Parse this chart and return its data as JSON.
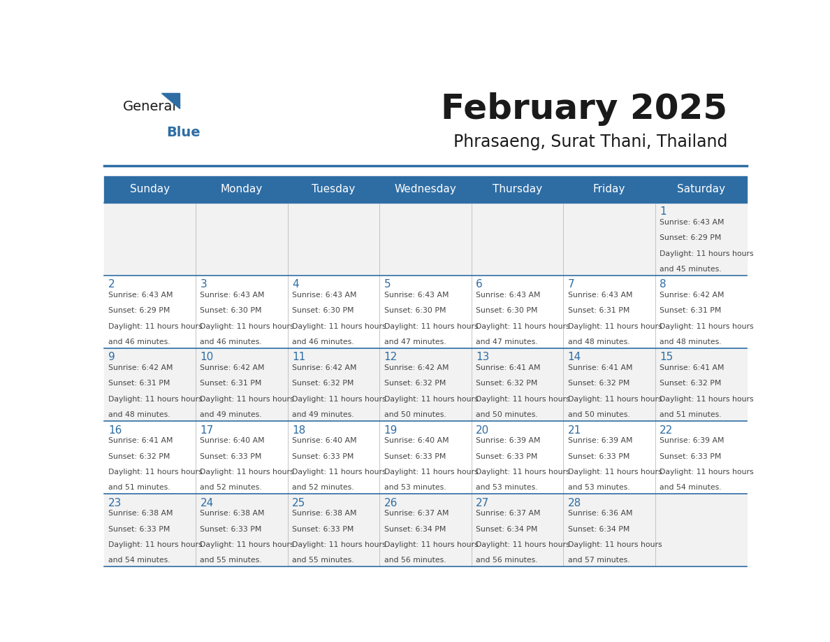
{
  "title": "February 2025",
  "subtitle": "Phrasaeng, Surat Thani, Thailand",
  "header_bg": "#2E6DA4",
  "header_text_color": "#FFFFFF",
  "cell_bg_light": "#F2F2F2",
  "cell_bg_white": "#FFFFFF",
  "day_number_color": "#2E6DA4",
  "text_color": "#444444",
  "line_color": "#2E6DA4",
  "days_of_week": [
    "Sunday",
    "Monday",
    "Tuesday",
    "Wednesday",
    "Thursday",
    "Friday",
    "Saturday"
  ],
  "weeks": [
    [
      {
        "day": "",
        "sunrise": "",
        "sunset": "",
        "daylight": ""
      },
      {
        "day": "",
        "sunrise": "",
        "sunset": "",
        "daylight": ""
      },
      {
        "day": "",
        "sunrise": "",
        "sunset": "",
        "daylight": ""
      },
      {
        "day": "",
        "sunrise": "",
        "sunset": "",
        "daylight": ""
      },
      {
        "day": "",
        "sunrise": "",
        "sunset": "",
        "daylight": ""
      },
      {
        "day": "",
        "sunrise": "",
        "sunset": "",
        "daylight": ""
      },
      {
        "day": "1",
        "sunrise": "6:43 AM",
        "sunset": "6:29 PM",
        "daylight": "11 hours and 45 minutes."
      }
    ],
    [
      {
        "day": "2",
        "sunrise": "6:43 AM",
        "sunset": "6:29 PM",
        "daylight": "11 hours and 46 minutes."
      },
      {
        "day": "3",
        "sunrise": "6:43 AM",
        "sunset": "6:30 PM",
        "daylight": "11 hours and 46 minutes."
      },
      {
        "day": "4",
        "sunrise": "6:43 AM",
        "sunset": "6:30 PM",
        "daylight": "11 hours and 46 minutes."
      },
      {
        "day": "5",
        "sunrise": "6:43 AM",
        "sunset": "6:30 PM",
        "daylight": "11 hours and 47 minutes."
      },
      {
        "day": "6",
        "sunrise": "6:43 AM",
        "sunset": "6:30 PM",
        "daylight": "11 hours and 47 minutes."
      },
      {
        "day": "7",
        "sunrise": "6:43 AM",
        "sunset": "6:31 PM",
        "daylight": "11 hours and 48 minutes."
      },
      {
        "day": "8",
        "sunrise": "6:42 AM",
        "sunset": "6:31 PM",
        "daylight": "11 hours and 48 minutes."
      }
    ],
    [
      {
        "day": "9",
        "sunrise": "6:42 AM",
        "sunset": "6:31 PM",
        "daylight": "11 hours and 48 minutes."
      },
      {
        "day": "10",
        "sunrise": "6:42 AM",
        "sunset": "6:31 PM",
        "daylight": "11 hours and 49 minutes."
      },
      {
        "day": "11",
        "sunrise": "6:42 AM",
        "sunset": "6:32 PM",
        "daylight": "11 hours and 49 minutes."
      },
      {
        "day": "12",
        "sunrise": "6:42 AM",
        "sunset": "6:32 PM",
        "daylight": "11 hours and 50 minutes."
      },
      {
        "day": "13",
        "sunrise": "6:41 AM",
        "sunset": "6:32 PM",
        "daylight": "11 hours and 50 minutes."
      },
      {
        "day": "14",
        "sunrise": "6:41 AM",
        "sunset": "6:32 PM",
        "daylight": "11 hours and 50 minutes."
      },
      {
        "day": "15",
        "sunrise": "6:41 AM",
        "sunset": "6:32 PM",
        "daylight": "11 hours and 51 minutes."
      }
    ],
    [
      {
        "day": "16",
        "sunrise": "6:41 AM",
        "sunset": "6:32 PM",
        "daylight": "11 hours and 51 minutes."
      },
      {
        "day": "17",
        "sunrise": "6:40 AM",
        "sunset": "6:33 PM",
        "daylight": "11 hours and 52 minutes."
      },
      {
        "day": "18",
        "sunrise": "6:40 AM",
        "sunset": "6:33 PM",
        "daylight": "11 hours and 52 minutes."
      },
      {
        "day": "19",
        "sunrise": "6:40 AM",
        "sunset": "6:33 PM",
        "daylight": "11 hours and 53 minutes."
      },
      {
        "day": "20",
        "sunrise": "6:39 AM",
        "sunset": "6:33 PM",
        "daylight": "11 hours and 53 minutes."
      },
      {
        "day": "21",
        "sunrise": "6:39 AM",
        "sunset": "6:33 PM",
        "daylight": "11 hours and 53 minutes."
      },
      {
        "day": "22",
        "sunrise": "6:39 AM",
        "sunset": "6:33 PM",
        "daylight": "11 hours and 54 minutes."
      }
    ],
    [
      {
        "day": "23",
        "sunrise": "6:38 AM",
        "sunset": "6:33 PM",
        "daylight": "11 hours and 54 minutes."
      },
      {
        "day": "24",
        "sunrise": "6:38 AM",
        "sunset": "6:33 PM",
        "daylight": "11 hours and 55 minutes."
      },
      {
        "day": "25",
        "sunrise": "6:38 AM",
        "sunset": "6:33 PM",
        "daylight": "11 hours and 55 minutes."
      },
      {
        "day": "26",
        "sunrise": "6:37 AM",
        "sunset": "6:34 PM",
        "daylight": "11 hours and 56 minutes."
      },
      {
        "day": "27",
        "sunrise": "6:37 AM",
        "sunset": "6:34 PM",
        "daylight": "11 hours and 56 minutes."
      },
      {
        "day": "28",
        "sunrise": "6:36 AM",
        "sunset": "6:34 PM",
        "daylight": "11 hours and 57 minutes."
      },
      {
        "day": "",
        "sunrise": "",
        "sunset": "",
        "daylight": ""
      }
    ]
  ]
}
